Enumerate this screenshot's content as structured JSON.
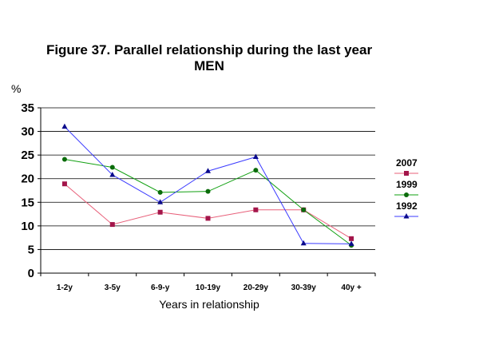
{
  "chart_data": {
    "type": "line",
    "title_line1": "Figure 37. Parallel relationship during the last year",
    "title_line2": "MEN",
    "ylabel": "%",
    "xlabel": "Years in relationship",
    "categories": [
      "1-2y",
      "3-5y",
      "6-9-y",
      "10-19y",
      "20-29y",
      "30-39y",
      "40y +"
    ],
    "ylim": [
      0,
      35
    ],
    "yticks": [
      0,
      5,
      10,
      15,
      20,
      25,
      30,
      35
    ],
    "grid": true,
    "legend_position": "right",
    "series": [
      {
        "name": "2007",
        "color": "#e8607a",
        "marker_color": "#a3154a",
        "marker": "square",
        "values": [
          18.9,
          10.3,
          12.9,
          11.6,
          13.4,
          13.4,
          7.3
        ]
      },
      {
        "name": "1999",
        "color": "#11a011",
        "marker_color": "#0b6b0b",
        "marker": "circle",
        "values": [
          24.1,
          22.4,
          17.1,
          17.3,
          21.8,
          13.4,
          5.9
        ]
      },
      {
        "name": "1992",
        "color": "#3b3bff",
        "marker_color": "#0a0a8c",
        "marker": "triangle",
        "values": [
          31.0,
          20.8,
          15.0,
          21.6,
          24.6,
          6.3,
          6.2
        ]
      }
    ]
  }
}
